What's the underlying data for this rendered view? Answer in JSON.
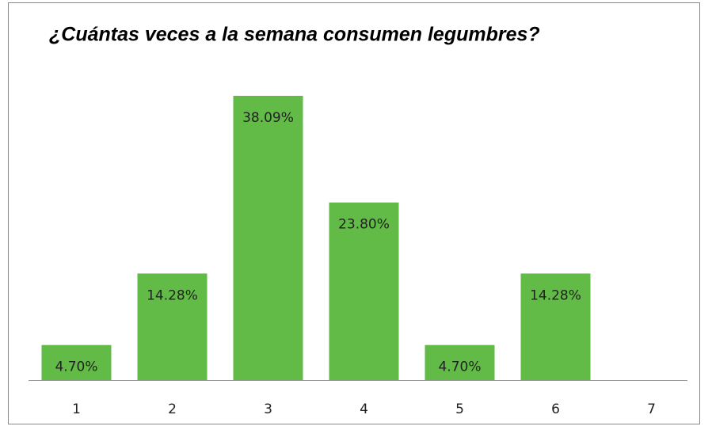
{
  "chart_data": {
    "type": "bar",
    "title": "¿Cuántas veces a la semana consumen legumbres?",
    "categories": [
      "1",
      "2",
      "3",
      "4",
      "5",
      "6",
      "7"
    ],
    "values": [
      4.7,
      14.28,
      38.09,
      23.8,
      4.7,
      14.28,
      null
    ],
    "value_labels": [
      "4.70%",
      "14.28%",
      "38.09%",
      "23.80%",
      "4.70%",
      "14.28%",
      null
    ],
    "color": "#62bb46"
  }
}
